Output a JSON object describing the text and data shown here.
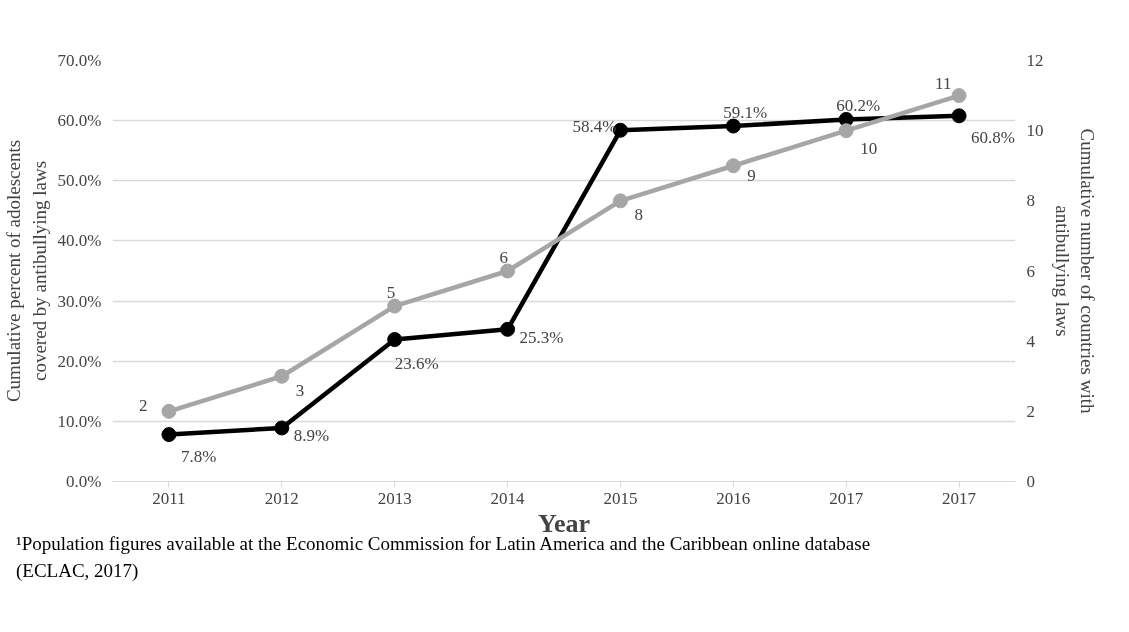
{
  "chart_data": {
    "type": "line",
    "categories": [
      "2011",
      "2012",
      "2013",
      "2014",
      "2015",
      "2016",
      "2017",
      "2017"
    ],
    "xlabel": "Year",
    "ylabel": "Cumulative percent of adolescents covered by antibullying laws",
    "y2label": "Cumulative number of countries with antibullying laws",
    "ylim": [
      0,
      70
    ],
    "yticks": [
      {
        "value": 0,
        "label": "0.0%"
      },
      {
        "value": 10,
        "label": "10.0%"
      },
      {
        "value": 20,
        "label": "20.0%"
      },
      {
        "value": 30,
        "label": "30.0%"
      },
      {
        "value": 40,
        "label": "40.0%"
      },
      {
        "value": 50,
        "label": "50.0%"
      },
      {
        "value": 60,
        "label": "60.0%"
      },
      {
        "value": 70,
        "label": "70.0%"
      }
    ],
    "y2lim": [
      0,
      12
    ],
    "y2ticks": [
      0,
      2,
      4,
      6,
      8,
      10,
      12
    ],
    "grid": "y",
    "marker": "circle",
    "line_style": "solid",
    "series": [
      {
        "color": "#000000",
        "values": [
          7.8,
          8.9,
          23.6,
          25.3,
          58.4,
          59.1,
          60.2,
          60.8
        ],
        "value_labels": [
          "7.8%",
          "8.9%",
          "23.6%",
          "25.3%",
          "58.4%",
          "59.1%",
          "60.2%",
          "60.8%"
        ]
      },
      {
        "color": "#a6a6a6",
        "axis": "y2",
        "values": [
          2,
          3,
          5,
          6,
          8,
          9,
          10,
          11
        ],
        "value_labels": [
          "2",
          "3",
          "5",
          "6",
          "8",
          "9",
          "10",
          "11"
        ]
      }
    ],
    "annotations": [
      "¹Population figures available at the Economic Commission for Latin America and the Caribbean online database (ECLAC, 2017)"
    ]
  }
}
